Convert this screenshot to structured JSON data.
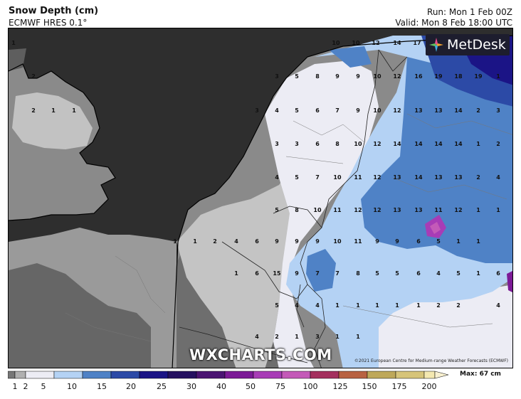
{
  "header": {
    "title": "Snow Depth (cm)",
    "model": "ECMWF HRES 0.1°",
    "run": "Run: Mon 1 Feb 00Z",
    "valid": "Valid: Mon 8 Feb 18:00 UTC"
  },
  "logo": {
    "text": "MetDesk",
    "icon": "metdesk-star-icon"
  },
  "watermark": "WXCHARTS.COM",
  "copyright": "©2021 European Centre for Medium-range Weather Forecasts (ECMWF)",
  "legend": {
    "max_label": "Max: 67 cm",
    "ticks": [
      "1",
      "2",
      "5",
      "10",
      "15",
      "20",
      "25",
      "30",
      "40",
      "50",
      "75",
      "100",
      "125",
      "150",
      "175",
      "200"
    ],
    "colors": [
      "#777777",
      "#b0b0b0",
      "#ececf4",
      "#b4d2f4",
      "#4f82c6",
      "#2c4aa6",
      "#1b1486",
      "#251060",
      "#4b1472",
      "#7c1a96",
      "#a83cb6",
      "#c45ab8",
      "#a4305e",
      "#b86242",
      "#bea85a",
      "#d6c47a",
      "#f4e8b0"
    ]
  },
  "map_values": [
    "1",
    "10",
    "10",
    "12",
    "14",
    "17",
    "2",
    "3",
    "5",
    "8",
    "9",
    "9",
    "10",
    "12",
    "16",
    "19",
    "18",
    "19",
    "1",
    "2",
    "1",
    "1",
    "3",
    "4",
    "5",
    "6",
    "7",
    "9",
    "10",
    "12",
    "13",
    "13",
    "14",
    "2",
    "3",
    "3",
    "3",
    "6",
    "8",
    "10",
    "12",
    "14",
    "14",
    "14",
    "14",
    "1",
    "2",
    "4",
    "5",
    "7",
    "10",
    "11",
    "12",
    "13",
    "14",
    "13",
    "13",
    "2",
    "4",
    "5",
    "8",
    "10",
    "11",
    "12",
    "12",
    "13",
    "13",
    "11",
    "12",
    "1",
    "1",
    "1",
    "1",
    "2",
    "4",
    "6",
    "9",
    "9",
    "9",
    "10",
    "11",
    "9",
    "9",
    "6",
    "5",
    "1",
    "1",
    "1",
    "6",
    "15",
    "9",
    "7",
    "7",
    "8",
    "5",
    "5",
    "6",
    "4",
    "5",
    "1",
    "6",
    "5",
    "4",
    "4",
    "1",
    "1",
    "1",
    "1",
    "1",
    "2",
    "2",
    "4",
    "4",
    "2",
    "1",
    "3",
    "1",
    "1"
  ]
}
